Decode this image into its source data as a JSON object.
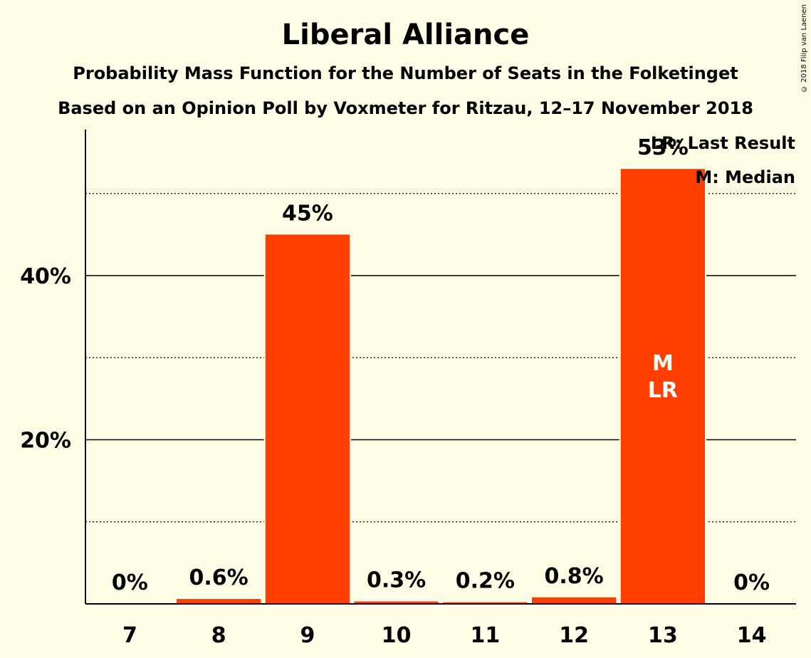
{
  "chart_data": {
    "type": "bar",
    "title": "Liberal Alliance",
    "subtitle": "Probability Mass Function for the Number of Seats in the Folketinget",
    "subtitle2": "Based on an Opinion Poll by Voxmeter for Ritzau, 12–17 November 2018",
    "categories": [
      "7",
      "8",
      "9",
      "10",
      "11",
      "12",
      "13",
      "14"
    ],
    "values": [
      0,
      0.6,
      45,
      0.3,
      0.2,
      0.8,
      53,
      0
    ],
    "value_labels": [
      "0%",
      "0.6%",
      "45%",
      "0.3%",
      "0.2%",
      "0.8%",
      "53%",
      "0%"
    ],
    "ylim": [
      0,
      57.5
    ],
    "yticks": [
      20,
      40
    ],
    "ytick_labels": [
      "20%",
      "40%"
    ],
    "minor_gridlines": [
      10,
      30,
      50
    ],
    "bar_color": "#FF3F00",
    "bar_annotations": [
      {
        "category": "13",
        "lines": [
          "M",
          "LR"
        ]
      }
    ],
    "legend": [
      "LR: Last Result",
      "M: Median"
    ],
    "legend_position": "top-right",
    "grid": true
  },
  "copyright": "© 2018 Filip van Laenen"
}
